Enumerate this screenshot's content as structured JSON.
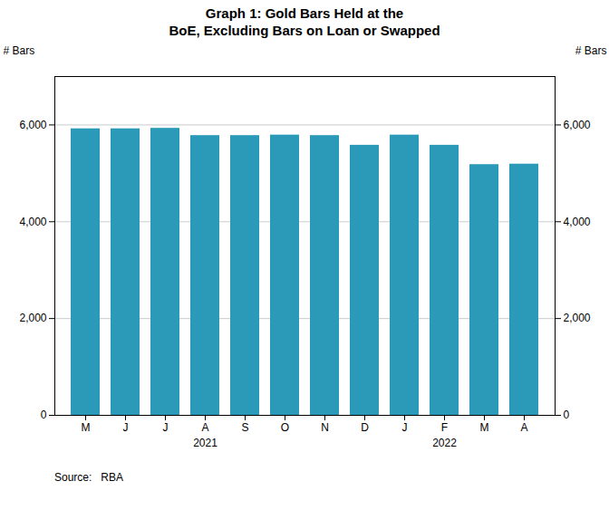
{
  "chart_data": {
    "type": "bar",
    "title": "Graph 1: Gold Bars Held at the\nBoE, Excluding Bars on Loan or Swapped",
    "categories": [
      "M",
      "J",
      "J",
      "A",
      "S",
      "O",
      "N",
      "D",
      "J",
      "F",
      "M",
      "A"
    ],
    "values": [
      5920,
      5920,
      5930,
      5780,
      5780,
      5790,
      5780,
      5580,
      5790,
      5580,
      5180,
      5190
    ],
    "color": "#2a9ab8",
    "ylim": [
      0,
      7000
    ],
    "yticks": [
      0,
      {
        "value": 2000,
        "label": "2,000"
      },
      {
        "value": 4000,
        "label": "4,000"
      },
      {
        "value": 6000,
        "label": "6,000"
      }
    ],
    "ylabel": "# Bars",
    "y2lim": [
      0,
      7000
    ],
    "y2ticks": [
      0,
      {
        "value": 2000,
        "label": "2,000"
      },
      {
        "value": 4000,
        "label": "4,000"
      },
      {
        "value": 6000,
        "label": "6,000"
      }
    ],
    "y2label": "# Bars",
    "grid": true,
    "annotations": [
      {
        "text": "2021",
        "x": 3
      },
      {
        "text": "2022",
        "x": 9
      }
    ],
    "source": "Source:   RBA"
  }
}
